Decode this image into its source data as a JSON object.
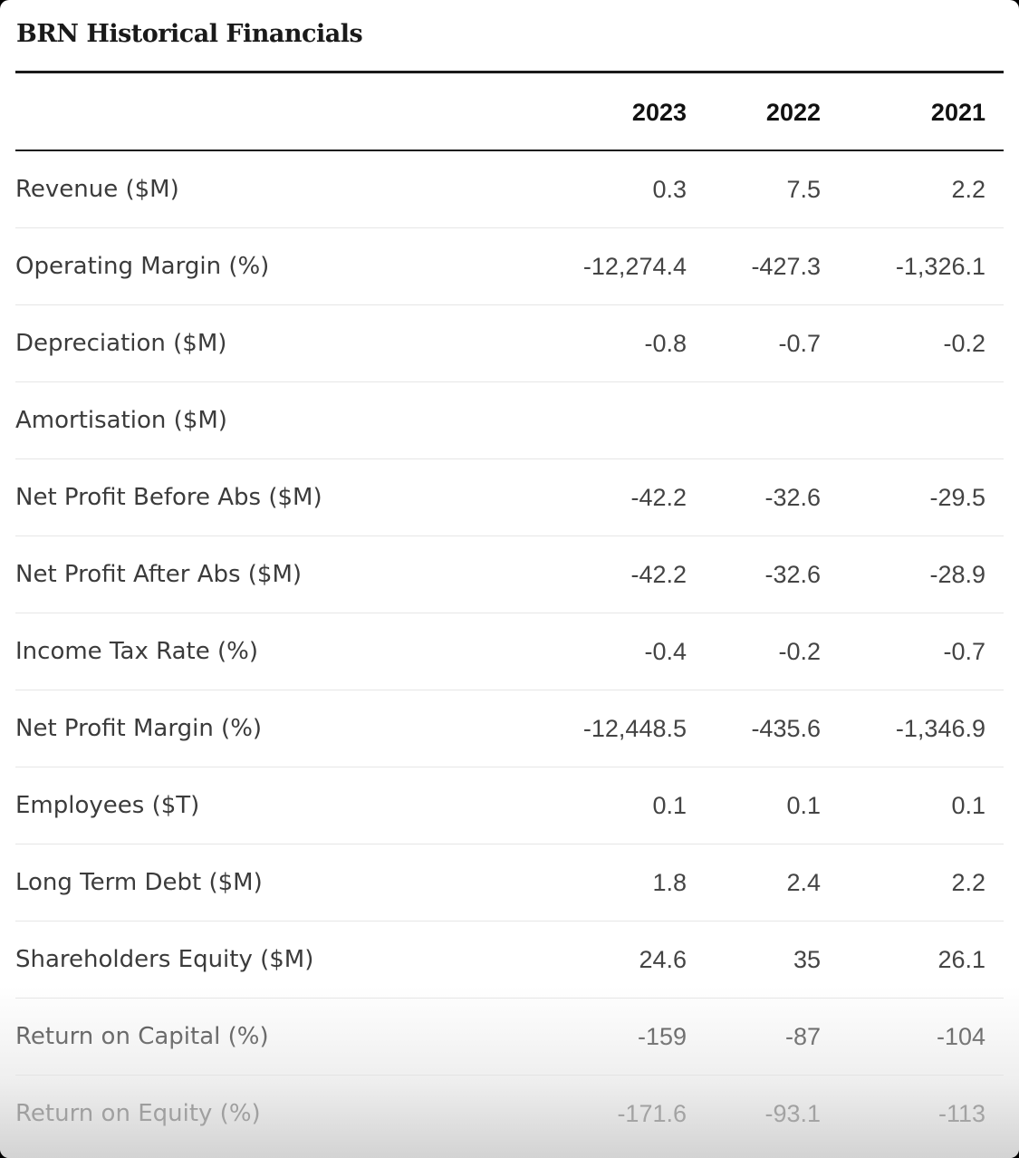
{
  "title": "BRN Historical Financials",
  "years": [
    "2023",
    "2022",
    "2021"
  ],
  "rows": [
    {
      "label": "Revenue ($M)",
      "values": [
        "0.3",
        "7.5",
        "2.2"
      ]
    },
    {
      "label": "Operating Margin (%)",
      "values": [
        "-12,274.4",
        "-427.3",
        "-1,326.1"
      ]
    },
    {
      "label": "Depreciation ($M)",
      "values": [
        "-0.8",
        "-0.7",
        "-0.2"
      ]
    },
    {
      "label": "Amortisation ($M)",
      "values": [
        "",
        "",
        ""
      ]
    },
    {
      "label": "Net Profit Before Abs ($M)",
      "values": [
        "-42.2",
        "-32.6",
        "-29.5"
      ]
    },
    {
      "label": "Net Profit After Abs ($M)",
      "values": [
        "-42.2",
        "-32.6",
        "-28.9"
      ]
    },
    {
      "label": "Income Tax Rate (%)",
      "values": [
        "-0.4",
        "-0.2",
        "-0.7"
      ]
    },
    {
      "label": "Net Profit Margin (%)",
      "values": [
        "-12,448.5",
        "-435.6",
        "-1,346.9"
      ]
    },
    {
      "label": "Employees ($T)",
      "values": [
        "0.1",
        "0.1",
        "0.1"
      ]
    },
    {
      "label": "Long Term Debt ($M)",
      "values": [
        "1.8",
        "2.4",
        "2.2"
      ]
    },
    {
      "label": "Shareholders Equity ($M)",
      "values": [
        "24.6",
        "35",
        "26.1"
      ]
    },
    {
      "label": "Return on Capital (%)",
      "values": [
        "-159",
        "-87",
        "-104"
      ]
    },
    {
      "label": "Return on Equity (%)",
      "values": [
        "-171.6",
        "-93.1",
        "-113"
      ]
    }
  ]
}
